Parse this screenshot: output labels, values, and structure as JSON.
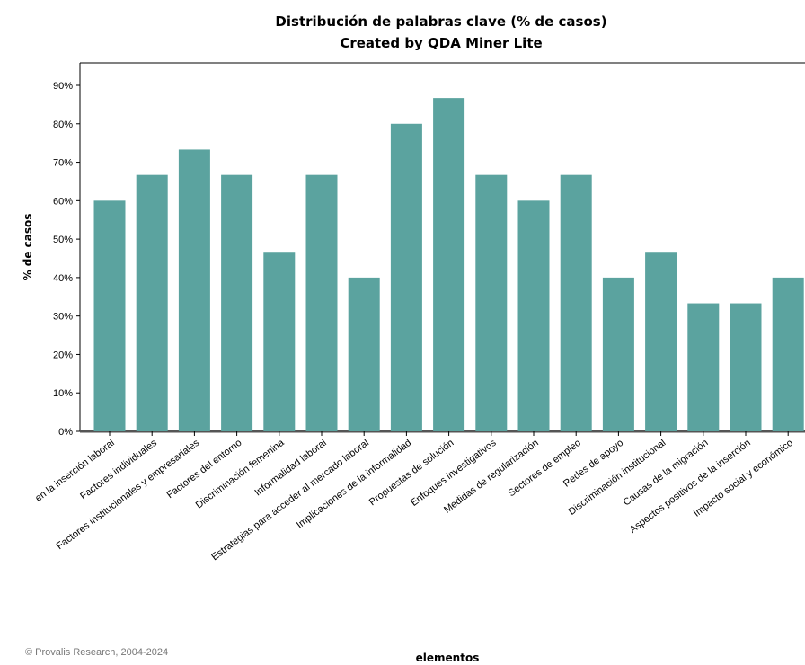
{
  "chart_data": {
    "type": "bar",
    "title": "Distribución de palabras clave (% de casos)",
    "subtitle": "Created by QDA Miner Lite",
    "xlabel": "elementos",
    "ylabel": "% de casos",
    "ylim": [
      0,
      90
    ],
    "yticks": [
      "0%",
      "10%",
      "20%",
      "30%",
      "40%",
      "50%",
      "60%",
      "70%",
      "80%",
      "90%"
    ],
    "grid": false,
    "bar_color": "#5ba39f",
    "categories": [
      "en la inserción laboral",
      "Factores individuales",
      "Factores institucionales y empresariales",
      "Factores del entorno",
      "Discriminación femenina",
      "Informalidad laboral",
      "Estrategias para acceder al mercado laboral",
      "Implicaciones de la informalidad",
      "Propuestas de solución",
      "Enfoques investigativos",
      "Medidas de regularización",
      "Sectores de empleo",
      "Redes de apoyo",
      "Discriminación institucional",
      "Causas de la migración",
      "Aspectos positivos de la inserción",
      "Impacto social y económico"
    ],
    "values": [
      60,
      66.7,
      73.3,
      66.7,
      46.7,
      66.7,
      40,
      80,
      86.7,
      66.7,
      60,
      66.7,
      40,
      46.7,
      33.3,
      33.3,
      40
    ]
  },
  "footer": {
    "copyright": "© Provalis Research, 2004-2024"
  }
}
